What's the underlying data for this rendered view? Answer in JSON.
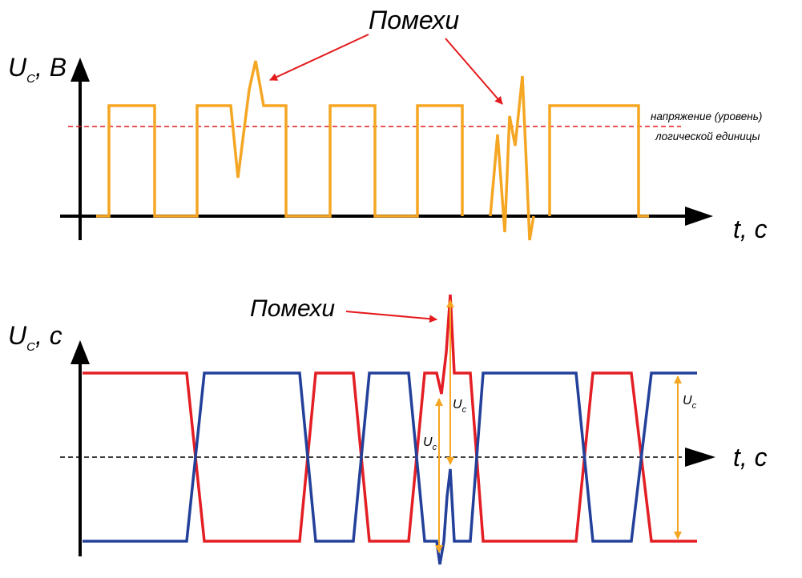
{
  "top_diagram": {
    "y_axis_label": {
      "main": "U",
      "subscript": "C",
      "suffix": ", B"
    },
    "x_axis_label": "t, c",
    "noise_label": "Помехи",
    "threshold_line": {
      "color": "#e41a1c",
      "label_line1": "напряжение (уровень)",
      "label_line2": "логической единицы"
    },
    "signal_color": "#f5a623"
  },
  "bottom_diagram": {
    "y_axis_label": {
      "main": "U",
      "subscript": "C",
      "suffix": ", c"
    },
    "x_axis_label": "t, c",
    "noise_label": "Помехи",
    "signal1_color": "#e31e24",
    "signal2_color": "#23409a",
    "amplitude_color": "#f5a623",
    "amplitude_labels": [
      {
        "main": "U",
        "subscript": "c"
      },
      {
        "main": "U",
        "subscript": "c"
      },
      {
        "main": "U",
        "subscript": "c"
      }
    ]
  }
}
